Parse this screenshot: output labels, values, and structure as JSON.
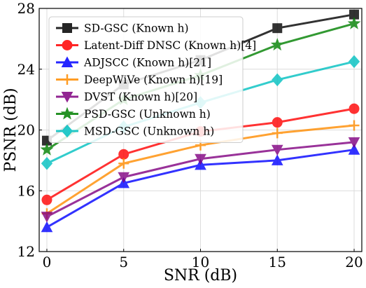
{
  "chart_data": {
    "type": "line",
    "title": "",
    "xlabel": "SNR (dB)",
    "ylabel": "PSNR (dB)",
    "xlim": [
      -0.5,
      20.5
    ],
    "ylim": [
      12,
      28
    ],
    "xticks": [
      0,
      5,
      10,
      15,
      20
    ],
    "yticks": [
      12,
      16,
      20,
      24,
      28
    ],
    "grid": true,
    "legend_position": "upper-left",
    "x": [
      0,
      5,
      10,
      15,
      20
    ],
    "series": [
      {
        "name": "SD-GSC (Known h)",
        "color": "#000000",
        "marker": "square",
        "values": [
          19.3,
          23.0,
          24.6,
          26.7,
          27.6
        ]
      },
      {
        "name": "Latent-Diff DNSC (Known h)[4]",
        "color": "#ff0000",
        "marker": "circle",
        "values": [
          15.4,
          18.4,
          19.9,
          20.5,
          21.4
        ]
      },
      {
        "name": "ADJSCC (Known h)[21]",
        "color": "#0000ff",
        "marker": "triangle-up",
        "values": [
          13.6,
          16.5,
          17.7,
          18.0,
          18.7
        ]
      },
      {
        "name": "DeepWiVe (Known h)[19]",
        "color": "#ff8c00",
        "marker": "plus",
        "values": [
          14.5,
          17.8,
          19.0,
          19.8,
          20.3
        ]
      },
      {
        "name": "DVST (Known h)[20]",
        "color": "#800080",
        "marker": "triangle-down",
        "values": [
          14.3,
          16.9,
          18.1,
          18.7,
          19.2
        ]
      },
      {
        "name": "PSD-GSC (Unknown h)",
        "color": "#008000",
        "marker": "star",
        "values": [
          18.7,
          22.0,
          23.6,
          25.6,
          27.0
        ]
      },
      {
        "name": "MSD-GSC (Unknown h)",
        "color": "#00c0c0",
        "marker": "diamond",
        "values": [
          17.8,
          20.2,
          21.8,
          23.3,
          24.5
        ]
      }
    ]
  }
}
